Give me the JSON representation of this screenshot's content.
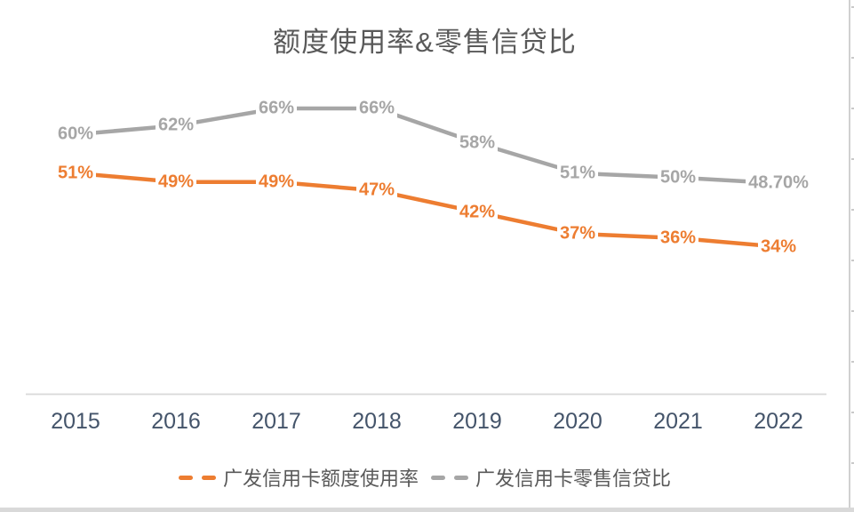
{
  "title": "额度使用率&零售信贷比",
  "chart_data": {
    "type": "line",
    "title": "额度使用率&零售信贷比",
    "categories": [
      "2015",
      "2016",
      "2017",
      "2018",
      "2019",
      "2020",
      "2021",
      "2022"
    ],
    "series": [
      {
        "name": "广发信用卡额度使用率",
        "color": "#ED7D31",
        "values": [
          51,
          49,
          49,
          47,
          42,
          37,
          36,
          34
        ],
        "labels": [
          "51%",
          "49%",
          "49%",
          "47%",
          "42%",
          "37%",
          "36%",
          "34%"
        ]
      },
      {
        "name": "广发信用卡零售信贷比",
        "color": "#A6A6A6",
        "values": [
          60,
          62,
          66,
          66,
          58,
          51,
          50,
          48.7
        ],
        "labels": [
          "60%",
          "62%",
          "66%",
          "66%",
          "58%",
          "51%",
          "50%",
          "48.70%"
        ]
      }
    ],
    "xlabel": "",
    "ylabel": "",
    "ylim": [
      0,
      70
    ],
    "grid": false,
    "y_axis_visible": false,
    "x_axis_line_color": "#D9D9D9",
    "data_labels": "shown, centered on points",
    "legend_position": "bottom"
  },
  "colors": {
    "title_text": "#595959",
    "axis_label_text": "#44546A",
    "legend_text": "#595959",
    "border_gray": "#D9D9D9"
  }
}
